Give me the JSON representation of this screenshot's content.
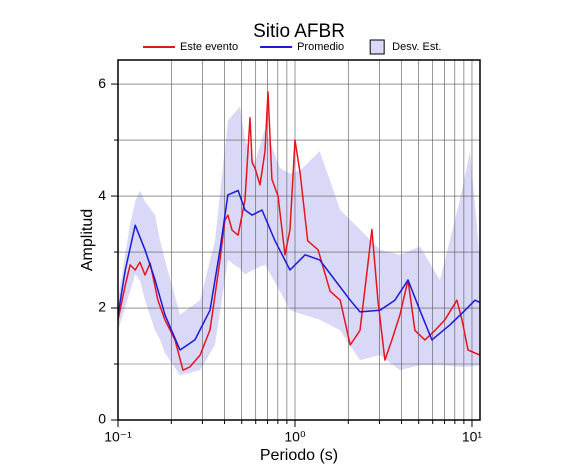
{
  "chart_data": {
    "type": "line",
    "title": "Sitio AFBR",
    "xlabel": "Periodo (s)",
    "ylabel": "Amplitud",
    "xscale": "log",
    "xlim": [
      0.1,
      11.1
    ],
    "ylim": [
      0,
      6.43
    ],
    "xticks": [
      {
        "value": 0.1,
        "label": "10⁻¹"
      },
      {
        "value": 1,
        "label": "10⁰"
      },
      {
        "value": 10,
        "label": "10¹"
      }
    ],
    "xminor": [
      0.2,
      0.3,
      0.4,
      0.5,
      0.6,
      0.7,
      0.8,
      0.9,
      2,
      3,
      4,
      5,
      6,
      7,
      8,
      9
    ],
    "yticks": [
      0,
      2,
      4,
      6
    ],
    "yminor": [
      1,
      3,
      5
    ],
    "grid": true,
    "legend": "top",
    "band": {
      "name": "Desv. Est.",
      "color": "#d9d9f7",
      "x": [
        0.1,
        0.117,
        0.125,
        0.133,
        0.142,
        0.162,
        0.173,
        0.184,
        0.224,
        0.291,
        0.353,
        0.418,
        0.489,
        0.522,
        0.594,
        0.677,
        0.823,
        0.937,
        1.07,
        1.38,
        1.8,
        2.33,
        3.02,
        3.92,
        5.08,
        6.59,
        8.55,
        9.75,
        11.1
      ],
      "upper": [
        2.14,
        3.5,
        3.9,
        4.1,
        3.9,
        3.66,
        3.2,
        2.86,
        1.88,
        2.14,
        3.2,
        5.35,
        5.6,
        5.0,
        4.6,
        5.2,
        4.5,
        4.4,
        4.46,
        4.8,
        3.75,
        3.4,
        3.04,
        2.95,
        3.1,
        2.5,
        3.93,
        4.8,
        2.86
      ],
      "lower": [
        1.6,
        2.3,
        2.6,
        2.5,
        2.14,
        1.6,
        1.43,
        1.2,
        0.8,
        0.89,
        1.34,
        2.86,
        2.7,
        2.6,
        2.7,
        2.77,
        2.3,
        1.96,
        1.9,
        1.79,
        1.6,
        1.07,
        1.16,
        0.89,
        0.98,
        0.98,
        0.95,
        0.95,
        0.98
      ]
    },
    "series": [
      {
        "name": "Este evento",
        "color": "#e8141c",
        "x": [
          0.1,
          0.11,
          0.117,
          0.125,
          0.133,
          0.142,
          0.152,
          0.168,
          0.184,
          0.21,
          0.233,
          0.255,
          0.291,
          0.331,
          0.353,
          0.377,
          0.402,
          0.418,
          0.441,
          0.477,
          0.522,
          0.557,
          0.572,
          0.594,
          0.634,
          0.677,
          0.704,
          0.741,
          0.802,
          0.878,
          0.937,
          1.0,
          1.07,
          1.18,
          1.35,
          1.58,
          1.8,
          2.05,
          2.33,
          2.58,
          2.72,
          2.94,
          3.22,
          3.53,
          3.92,
          4.35,
          4.76,
          5.42,
          6.18,
          7.03,
          8.22,
          8.78,
          9.49,
          11.1
        ],
        "values": [
          1.79,
          2.41,
          2.77,
          2.68,
          2.82,
          2.59,
          2.8,
          2.14,
          1.79,
          1.43,
          0.89,
          0.95,
          1.16,
          1.61,
          2.23,
          2.86,
          3.57,
          3.66,
          3.39,
          3.3,
          3.93,
          5.4,
          4.6,
          4.5,
          4.2,
          4.8,
          5.86,
          4.3,
          4.0,
          2.95,
          3.4,
          5.0,
          4.4,
          3.2,
          3.04,
          2.3,
          2.14,
          1.34,
          1.6,
          2.77,
          3.4,
          2.14,
          1.07,
          1.43,
          1.88,
          2.5,
          1.6,
          1.43,
          1.6,
          1.79,
          2.14,
          1.79,
          1.25,
          1.16
        ]
      },
      {
        "name": "Promedio",
        "color": "#1a1adb",
        "x": [
          0.1,
          0.11,
          0.125,
          0.142,
          0.162,
          0.184,
          0.224,
          0.272,
          0.331,
          0.377,
          0.418,
          0.477,
          0.522,
          0.572,
          0.651,
          0.771,
          0.937,
          1.14,
          1.38,
          1.68,
          2.05,
          2.33,
          3.02,
          3.67,
          4.35,
          5.08,
          5.94,
          7.51,
          9.13,
          10.4,
          11.1
        ],
        "values": [
          1.88,
          2.68,
          3.48,
          3.04,
          2.5,
          1.88,
          1.25,
          1.43,
          1.96,
          3.04,
          4.02,
          4.1,
          3.75,
          3.66,
          3.75,
          3.2,
          2.68,
          2.95,
          2.86,
          2.5,
          2.14,
          1.93,
          1.96,
          2.14,
          2.5,
          1.96,
          1.43,
          1.7,
          1.96,
          2.14,
          2.1
        ]
      }
    ]
  }
}
